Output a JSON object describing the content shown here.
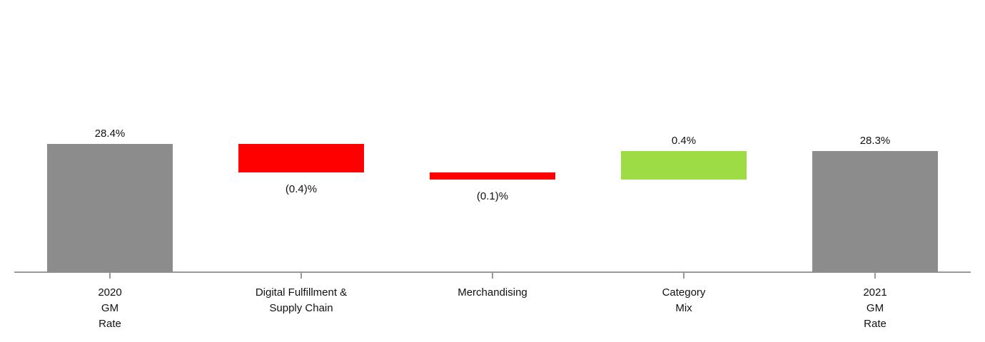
{
  "chart_data": {
    "type": "waterfall",
    "categories": [
      "2020\nGM\nRate",
      "Digital Fulfillment &\nSupply Chain",
      "Merchandising",
      "Category\nMix",
      "2021\nGM\nRate"
    ],
    "values": [
      28.4,
      -0.4,
      -0.1,
      0.4,
      28.3
    ],
    "value_labels": [
      "28.4%",
      "(0.4)%",
      "(0.1)%",
      "0.4%",
      "28.3%"
    ],
    "measure": [
      "absolute",
      "relative",
      "relative",
      "relative",
      "total"
    ],
    "colors": [
      "#8c8c8c",
      "#ff0000",
      "#ff0000",
      "#9ddc44",
      "#8c8c8c"
    ],
    "ylim": [
      26.6,
      30.1
    ]
  }
}
